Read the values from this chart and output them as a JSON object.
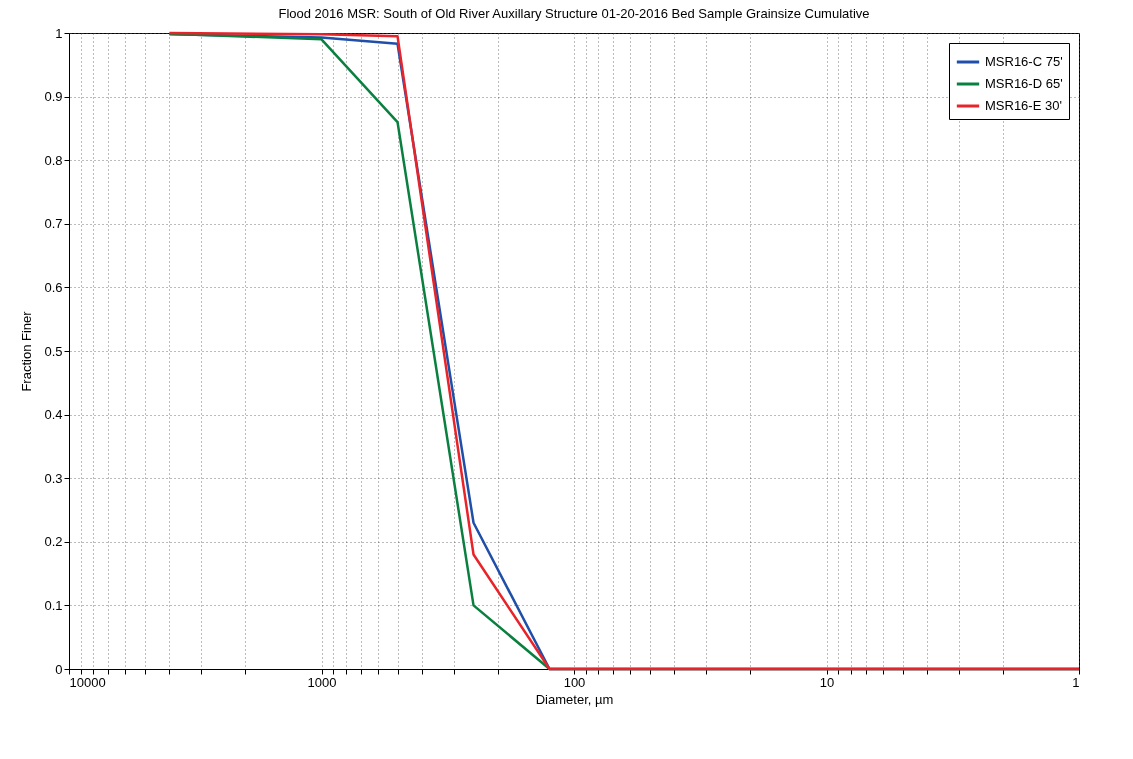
{
  "chart_data": {
    "type": "line",
    "title": "Flood 2016 MSR: South of Old River Auxillary Structure 01-20-2016 Bed Sample Grainsize Cumulative",
    "xlabel": "Diameter, µm",
    "ylabel": "Fraction Finer",
    "x": [
      4000,
      1000,
      500,
      250,
      125,
      1
    ],
    "series": [
      {
        "name": "MSR16-C 75'",
        "color": "#1f4fa8",
        "values": [
          0.998,
          0.993,
          0.983,
          0.23,
          0,
          0
        ]
      },
      {
        "name": "MSR16-D 65'",
        "color": "#0a8040",
        "values": [
          0.999,
          0.99,
          0.86,
          0.1,
          0,
          0
        ]
      },
      {
        "name": "MSR16-E 30'",
        "color": "#e8242a",
        "values": [
          1,
          0.998,
          0.995,
          0.18,
          0,
          0
        ]
      }
    ],
    "log": "x",
    "xlim": [
      10000,
      1
    ],
    "ylim": [
      0,
      1
    ],
    "xticks": [
      10000,
      {
        "value": 9000,
        "label": null
      },
      {
        "value": 8000,
        "label": null
      },
      {
        "value": 7000,
        "label": null
      },
      {
        "value": 6000,
        "label": null
      },
      {
        "value": 5000,
        "label": null
      },
      {
        "value": 4000,
        "label": null
      },
      {
        "value": 3000,
        "label": null
      },
      {
        "value": 2000,
        "label": null
      },
      1000,
      {
        "value": 900,
        "label": null
      },
      {
        "value": 800,
        "label": null
      },
      {
        "value": 700,
        "label": null
      },
      {
        "value": 600,
        "label": null
      },
      {
        "value": 500,
        "label": null
      },
      {
        "value": 400,
        "label": null
      },
      {
        "value": 300,
        "label": null
      },
      {
        "value": 200,
        "label": null
      },
      100,
      {
        "value": 90,
        "label": null
      },
      {
        "value": 80,
        "label": null
      },
      {
        "value": 70,
        "label": null
      },
      {
        "value": 60,
        "label": null
      },
      {
        "value": 50,
        "label": null
      },
      {
        "value": 40,
        "label": null
      },
      {
        "value": 30,
        "label": null
      },
      {
        "value": 20,
        "label": null
      },
      10,
      {
        "value": 9,
        "label": null
      },
      {
        "value": 8,
        "label": null
      },
      {
        "value": 7,
        "label": null
      },
      {
        "value": 6,
        "label": null
      },
      {
        "value": 5,
        "label": null
      },
      {
        "value": 4,
        "label": null
      },
      {
        "value": 3,
        "label": null
      },
      {
        "value": 2,
        "label": null
      },
      1
    ],
    "yticks": [
      0,
      0.1,
      0.2,
      0.3,
      0.4,
      0.5,
      0.6,
      0.7,
      0.8,
      0.9,
      1
    ],
    "grid": true,
    "legend": "top right",
    "line_style": "solid",
    "marker": "none"
  }
}
